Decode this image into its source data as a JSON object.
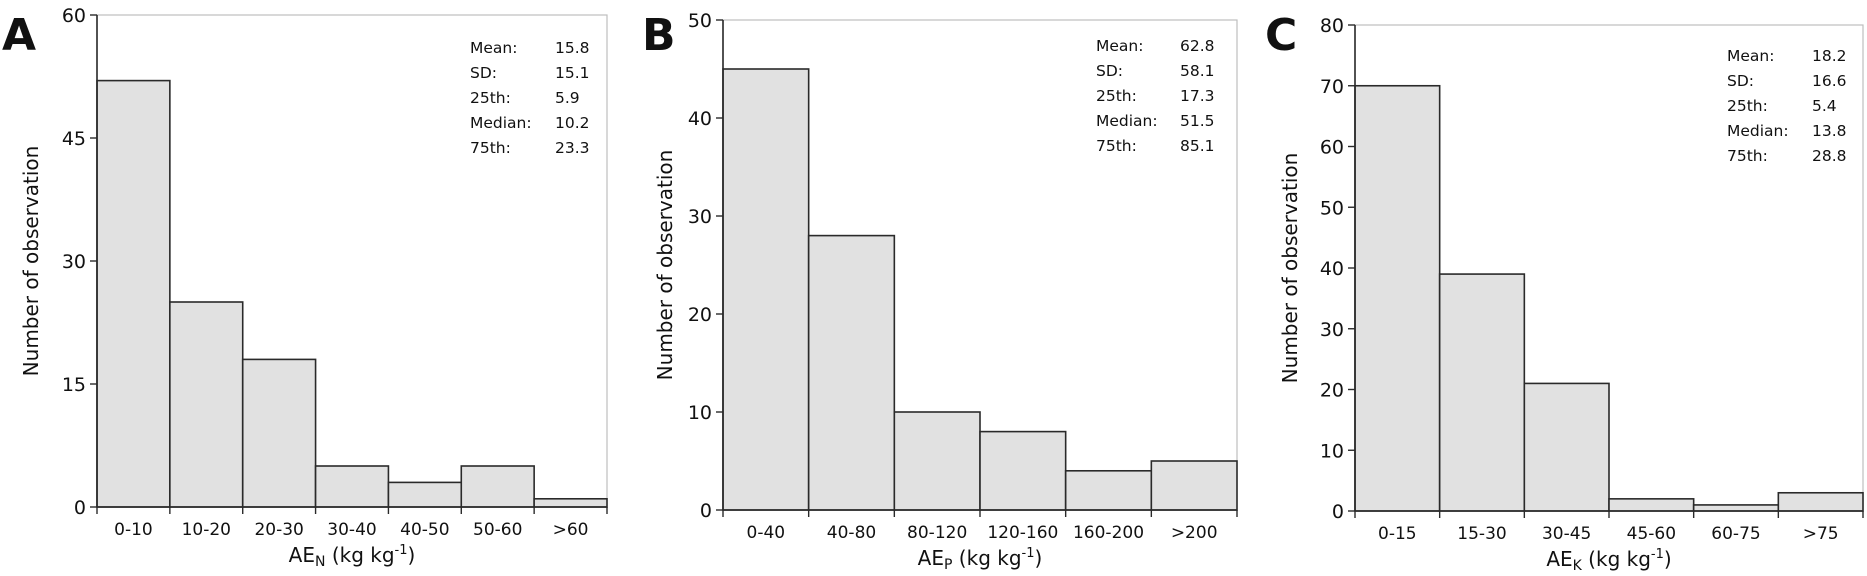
{
  "colors": {
    "bar_fill": "#e1e1e1",
    "bar_stroke": "#2a2a2a",
    "frame": "#bdbdbd"
  },
  "chart_data": [
    {
      "type": "bar",
      "panel": "A",
      "categories": [
        "0-10",
        "10-20",
        "20-30",
        "30-40",
        "40-50",
        "50-60",
        ">60"
      ],
      "values": [
        52,
        25,
        18,
        5,
        3,
        5,
        1
      ],
      "ylim": [
        0,
        60
      ],
      "yticks": [
        0,
        15,
        30,
        45,
        60
      ],
      "ylabel": "Number of observation",
      "xlabel_main": "AE",
      "xlabel_sub": "N",
      "xlabel_unit": " (kg kg",
      "xlabel_sup": "-1",
      "xlabel_close": ")",
      "grid": false,
      "legend": "none",
      "stats": [
        {
          "label": "Mean:",
          "value": "15.8"
        },
        {
          "label": "SD:",
          "value": "15.1"
        },
        {
          "label": "25th:",
          "value": "5.9"
        },
        {
          "label": "Median:",
          "value": "10.2"
        },
        {
          "label": "75th:",
          "value": "23.3"
        }
      ]
    },
    {
      "type": "bar",
      "panel": "B",
      "categories": [
        "0-40",
        "40-80",
        "80-120",
        "120-160",
        "160-200",
        ">200"
      ],
      "values": [
        45,
        28,
        10,
        8,
        4,
        5
      ],
      "ylim": [
        0,
        50
      ],
      "yticks": [
        0,
        10,
        20,
        30,
        40,
        50
      ],
      "ylabel": "Number of observation",
      "xlabel_main": "AE",
      "xlabel_sub": "P",
      "xlabel_unit": " (kg kg",
      "xlabel_sup": "-1",
      "xlabel_close": ")",
      "grid": false,
      "legend": "none",
      "stats": [
        {
          "label": "Mean:",
          "value": "62.8"
        },
        {
          "label": "SD:",
          "value": "58.1"
        },
        {
          "label": "25th:",
          "value": "17.3"
        },
        {
          "label": "Median:",
          "value": "51.5"
        },
        {
          "label": "75th:",
          "value": "85.1"
        }
      ]
    },
    {
      "type": "bar",
      "panel": "C",
      "categories": [
        "0-15",
        "15-30",
        "30-45",
        "45-60",
        "60-75",
        ">75"
      ],
      "values": [
        70,
        39,
        21,
        2,
        1,
        3
      ],
      "ylim": [
        0,
        80
      ],
      "yticks": [
        0,
        10,
        20,
        30,
        40,
        50,
        60,
        70,
        80
      ],
      "ylabel": "Number of observation",
      "xlabel_main": "AE",
      "xlabel_sub": "K",
      "xlabel_unit": " (kg kg",
      "xlabel_sup": "-1",
      "xlabel_close": ")",
      "grid": false,
      "legend": "none",
      "stats": [
        {
          "label": "Mean:",
          "value": "18.2"
        },
        {
          "label": "SD:",
          "value": "16.6"
        },
        {
          "label": "25th:",
          "value": "5.4"
        },
        {
          "label": "Median:",
          "value": "13.8"
        },
        {
          "label": "75th:",
          "value": "28.8"
        }
      ]
    }
  ]
}
